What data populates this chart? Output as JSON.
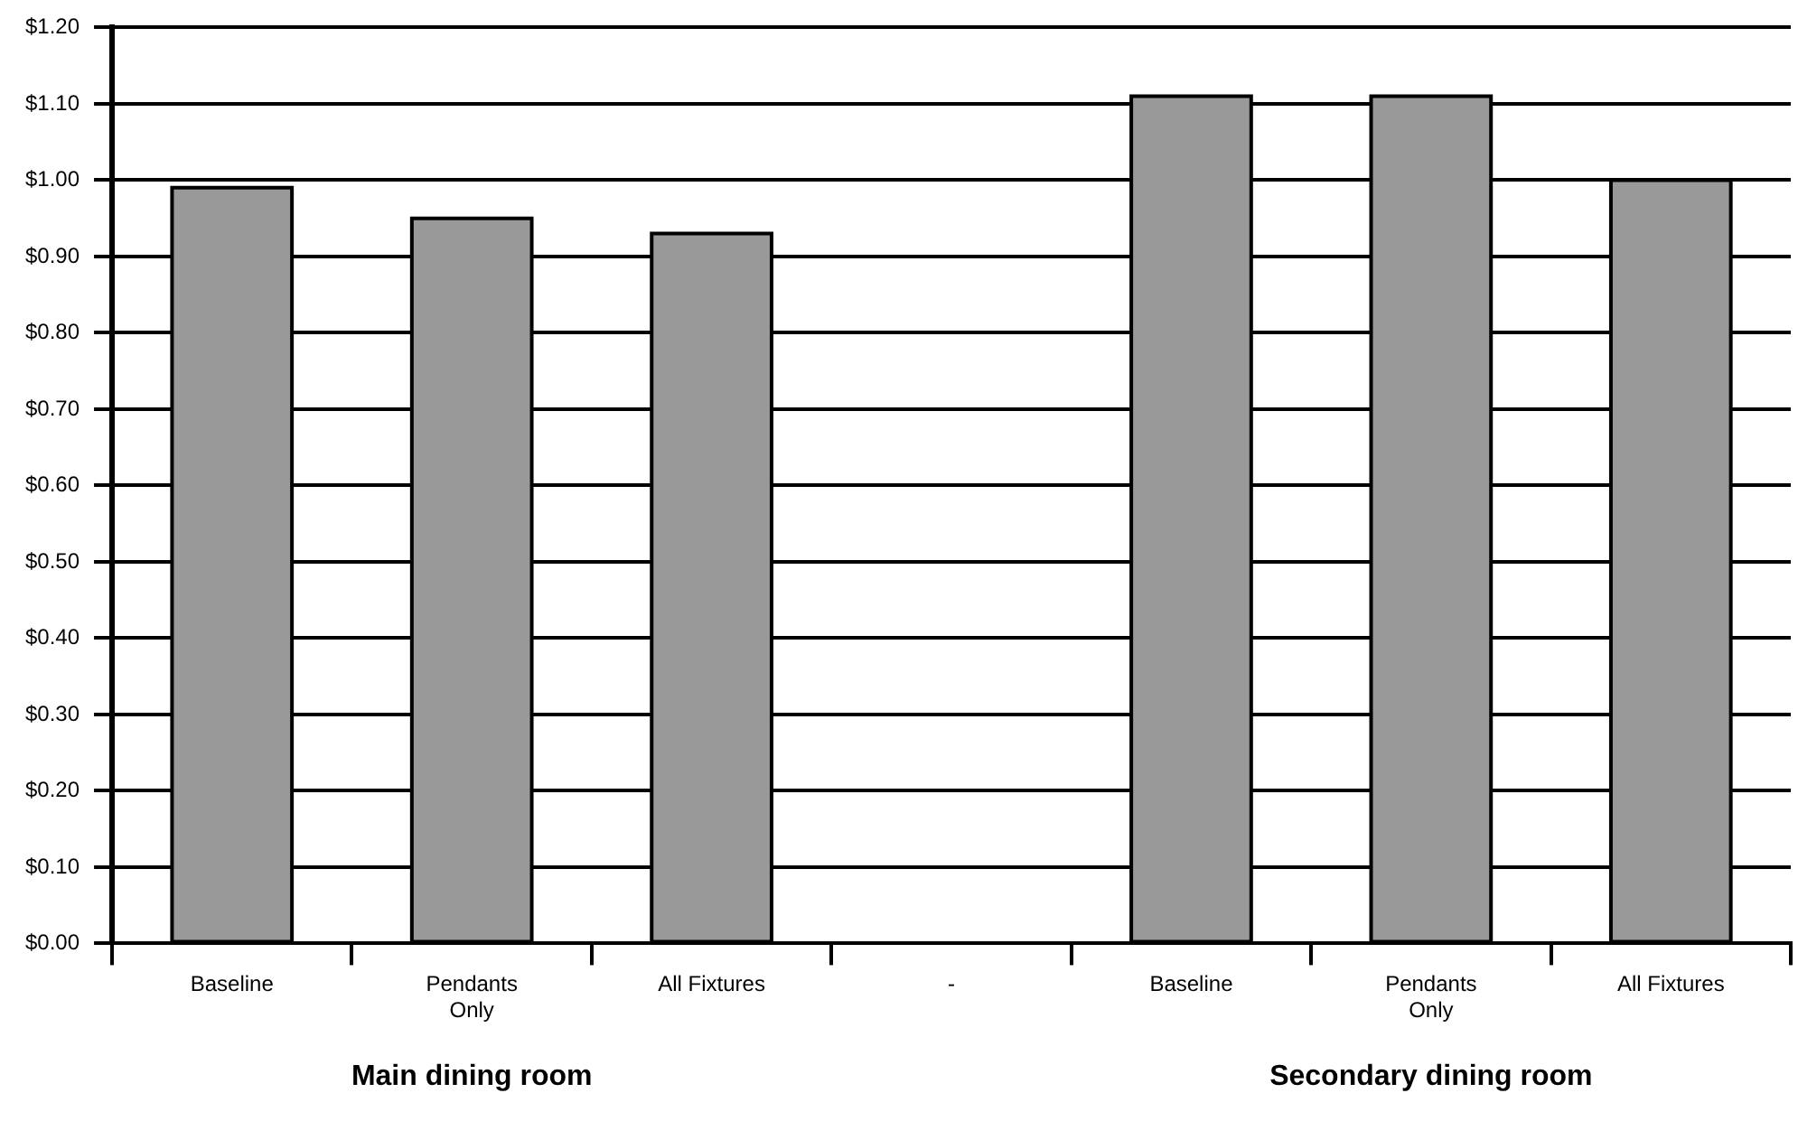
{
  "chart_data": {
    "type": "bar",
    "categories": [
      "Baseline",
      "Pendants Only",
      "All Fixtures",
      "-",
      "Baseline",
      "Pendants Only",
      "All Fixtures"
    ],
    "values": [
      0.99,
      0.95,
      0.93,
      null,
      1.11,
      1.11,
      1.0
    ],
    "color": "#999999",
    "ylim": [
      0,
      1.2
    ],
    "yticks": [
      {
        "value": 0,
        "label": "$0.00"
      },
      {
        "value": 0.1,
        "label": "$0.10"
      },
      {
        "value": 0.2,
        "label": "$0.20"
      },
      {
        "value": 0.3,
        "label": "$0.30"
      },
      {
        "value": 0.4,
        "label": "$0.40"
      },
      {
        "value": 0.5,
        "label": "$0.50"
      },
      {
        "value": 0.6,
        "label": "$0.60"
      },
      {
        "value": 0.7,
        "label": "$0.70"
      },
      {
        "value": 0.8,
        "label": "$0.80"
      },
      {
        "value": 0.9,
        "label": "$0.90"
      },
      {
        "value": 1.0,
        "label": "$1.00"
      },
      {
        "value": 1.1,
        "label": "$1.10"
      },
      {
        "value": 1.2,
        "label": "$1.20"
      }
    ],
    "grid": "y",
    "annotations": [
      "Main dining room",
      "Secondary dining room"
    ]
  }
}
